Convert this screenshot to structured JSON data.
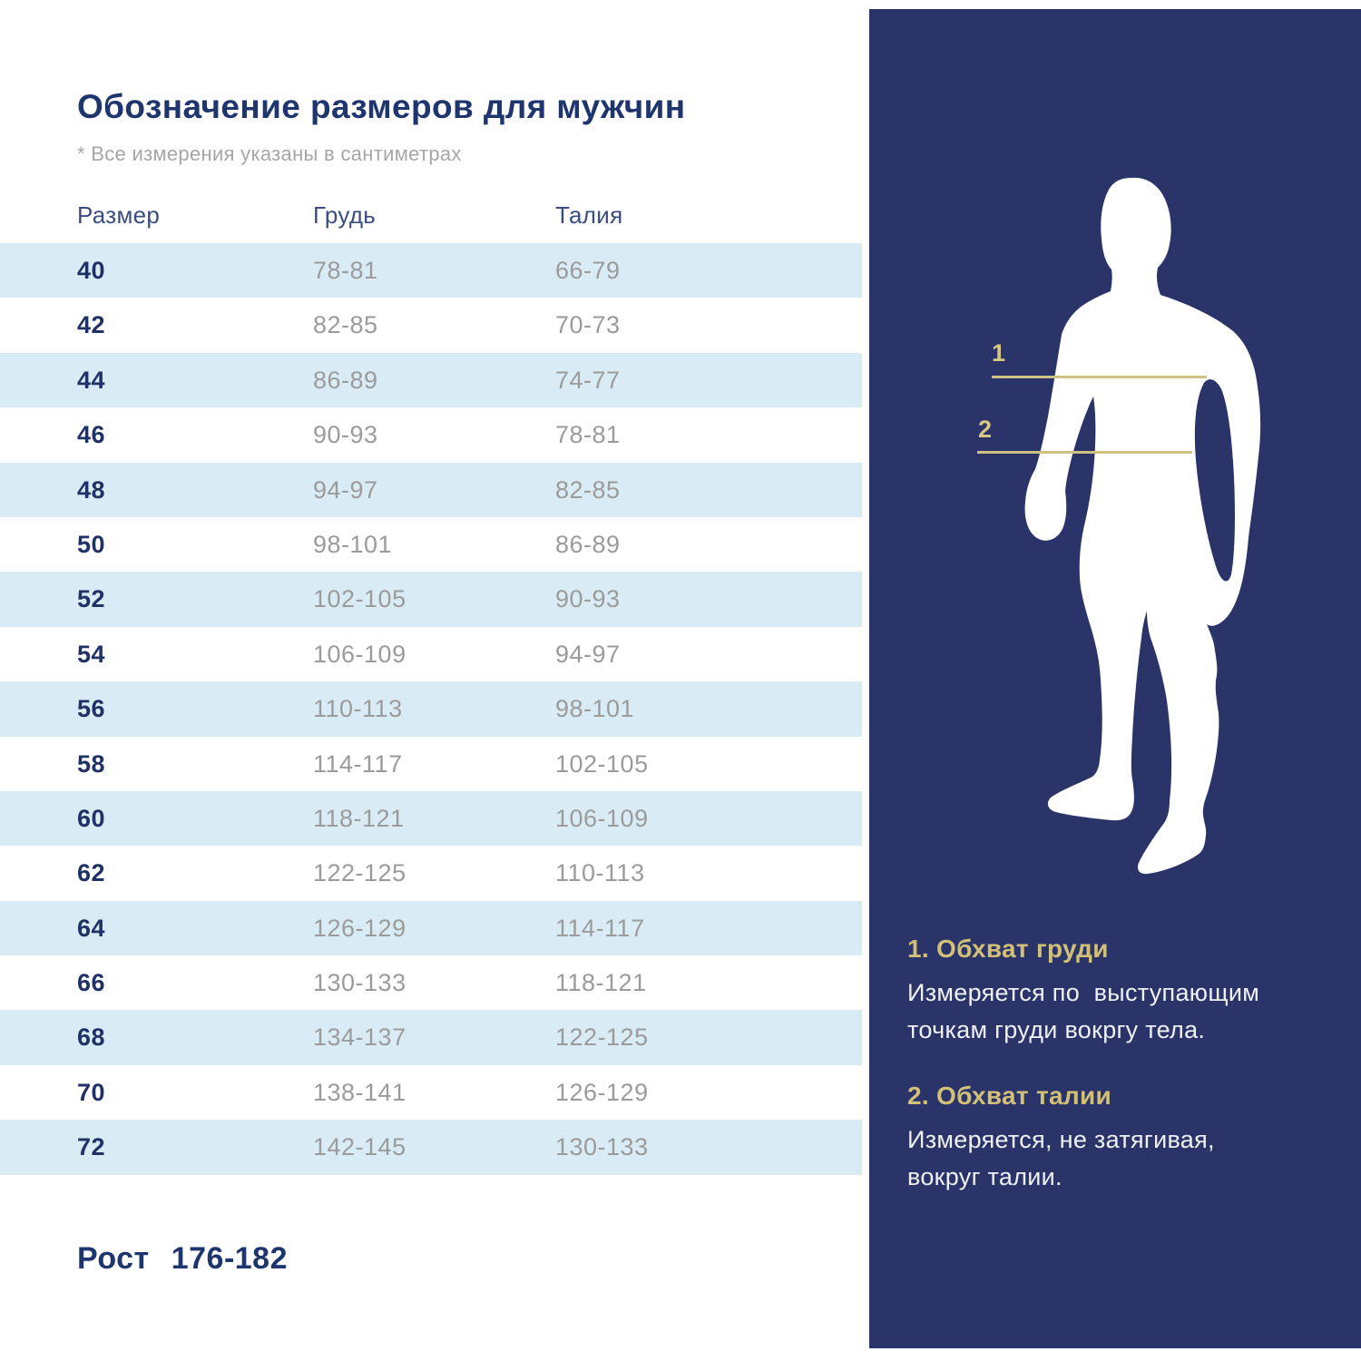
{
  "title": "Обозначение размеров для мужчин",
  "note": "* Все измерения указаны в сантиметрах",
  "table": {
    "headers": [
      "Размер",
      "Грудь",
      "Талия"
    ],
    "rows": [
      [
        "40",
        "78-81",
        "66-79"
      ],
      [
        "42",
        "82-85",
        "70-73"
      ],
      [
        "44",
        "86-89",
        "74-77"
      ],
      [
        "46",
        "90-93",
        "78-81"
      ],
      [
        "48",
        "94-97",
        "82-85"
      ],
      [
        "50",
        "98-101",
        "86-89"
      ],
      [
        "52",
        "102-105",
        "90-93"
      ],
      [
        "54",
        "106-109",
        "94-97"
      ],
      [
        "56",
        "110-113",
        "98-101"
      ],
      [
        "58",
        "114-117",
        "102-105"
      ],
      [
        "60",
        "118-121",
        "106-109"
      ],
      [
        "62",
        "122-125",
        "110-113"
      ],
      [
        "64",
        "126-129",
        "114-117"
      ],
      [
        "66",
        "130-133",
        "118-121"
      ],
      [
        "68",
        "134-137",
        "122-125"
      ],
      [
        "70",
        "138-141",
        "126-129"
      ],
      [
        "72",
        "142-145",
        "130-133"
      ]
    ]
  },
  "height_label": "Рост",
  "height_value": "176-182",
  "figure": {
    "marker1": "1",
    "marker2": "2"
  },
  "notes": [
    {
      "title": "1. Обхват груди",
      "text": "Измеряется по  выступающим\nточкам груди вокргу тела."
    },
    {
      "title": "2. Обхват талии",
      "text": "Измеряется, не затягивая,\nвокруг талии."
    }
  ],
  "colors": {
    "panel_navy": "#2a3468",
    "row_band_blue": "#d9ecf5",
    "title_navy": "#1e356e",
    "value_gray": "#9b9b9b",
    "gold_accent": "#d2c078",
    "gold_line": "#cfc083"
  }
}
